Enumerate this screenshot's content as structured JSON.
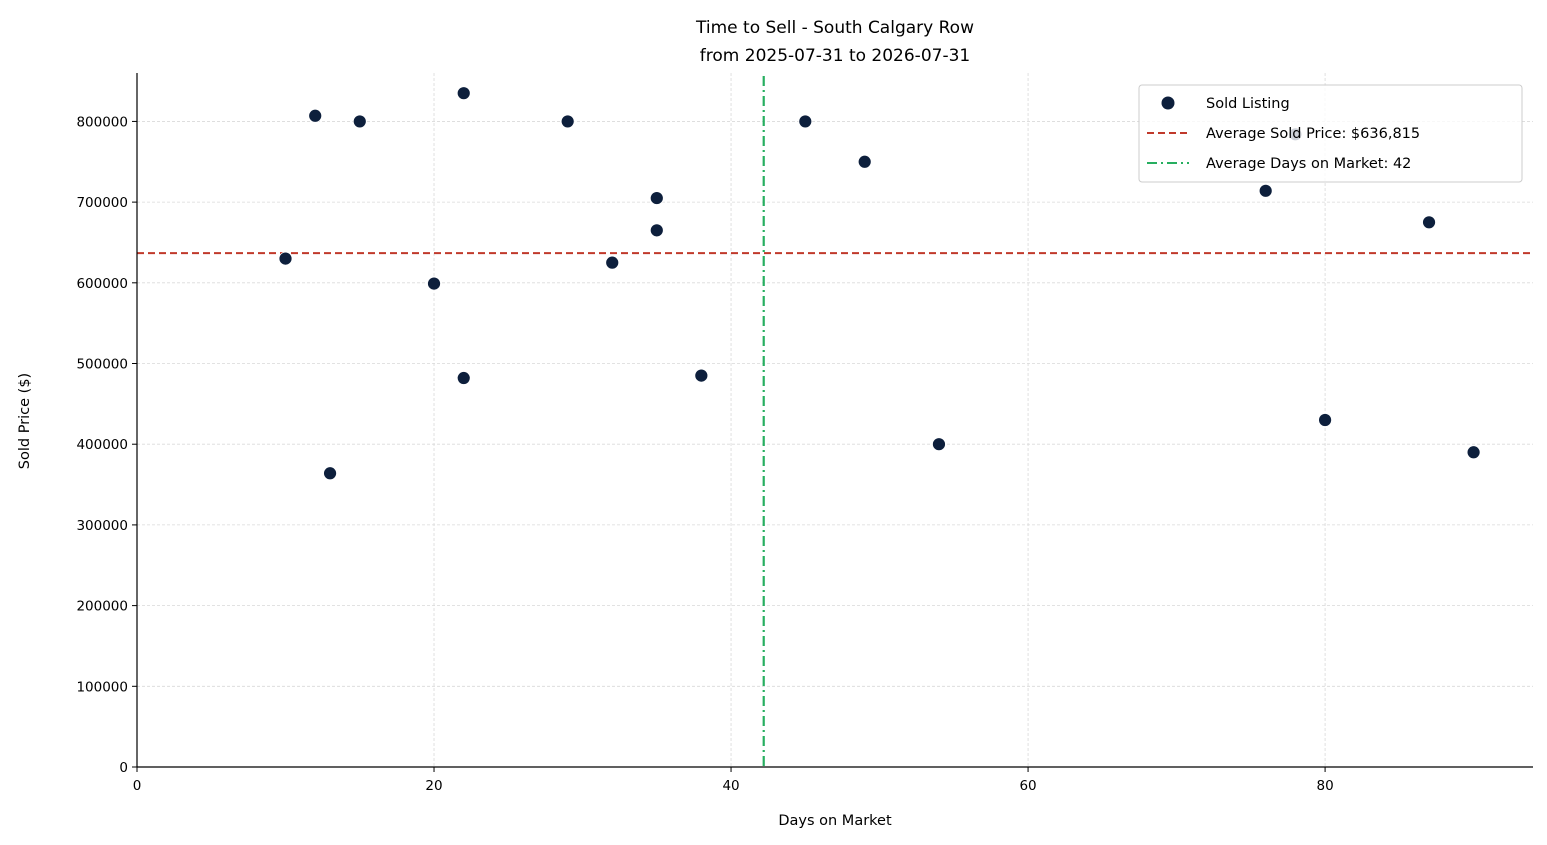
{
  "chart_data": {
    "type": "scatter",
    "title": "Time to Sell - South Calgary Row",
    "subtitle": "from 2025-07-31 to 2026-07-31",
    "xlabel": "Days on Market",
    "ylabel": "Sold Price ($)",
    "xlim": [
      0,
      94
    ],
    "ylim": [
      0,
      860000
    ],
    "xticks": [
      0,
      20,
      40,
      60,
      80
    ],
    "xtick_labels": [
      "0",
      "20",
      "40",
      "60",
      "80"
    ],
    "yticks": [
      0,
      100000,
      200000,
      300000,
      400000,
      500000,
      600000,
      700000,
      800000
    ],
    "ytick_labels": [
      "0",
      "100000",
      "200000",
      "300000",
      "400000",
      "500000",
      "600000",
      "700000",
      "800000"
    ],
    "grid": true,
    "legend_position": "top-right",
    "series": [
      {
        "name": "Sold Listing",
        "color": "#0d1f3c",
        "points": [
          {
            "x": 10,
            "y": 630000
          },
          {
            "x": 12,
            "y": 807000
          },
          {
            "x": 13,
            "y": 364000
          },
          {
            "x": 15,
            "y": 800000
          },
          {
            "x": 20,
            "y": 599000
          },
          {
            "x": 22,
            "y": 835000
          },
          {
            "x": 22,
            "y": 482000
          },
          {
            "x": 29,
            "y": 800000
          },
          {
            "x": 32,
            "y": 625000
          },
          {
            "x": 35,
            "y": 705000
          },
          {
            "x": 35,
            "y": 665000
          },
          {
            "x": 38,
            "y": 485000
          },
          {
            "x": 45,
            "y": 800000
          },
          {
            "x": 49,
            "y": 750000
          },
          {
            "x": 54,
            "y": 400000
          },
          {
            "x": 76,
            "y": 714000
          },
          {
            "x": 78,
            "y": 784000
          },
          {
            "x": 80,
            "y": 430000
          },
          {
            "x": 87,
            "y": 675000
          },
          {
            "x": 90,
            "y": 390000
          }
        ]
      }
    ],
    "reference_lines": [
      {
        "label": "Average Sold Price: $636,815",
        "orientation": "horizontal",
        "value": 636815,
        "style": "dashed",
        "color": "#c0392b"
      },
      {
        "label": "Average Days on Market: 42",
        "orientation": "vertical",
        "value": 42.2,
        "style": "dash-dot",
        "color": "#27ae60"
      }
    ]
  }
}
